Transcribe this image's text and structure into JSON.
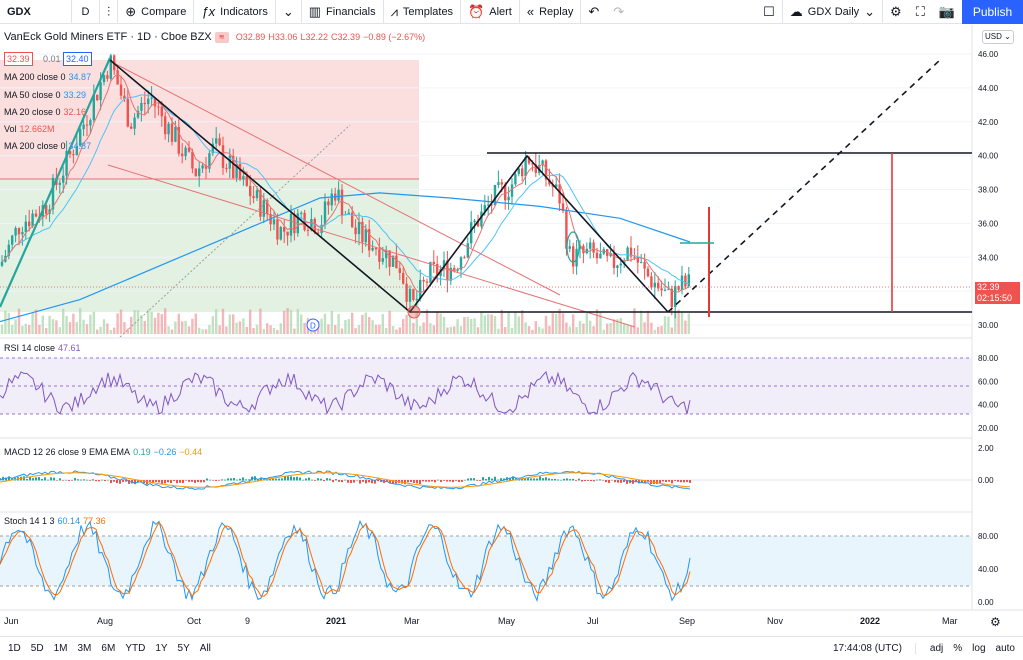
{
  "toolbar": {
    "symbol": "GDX",
    "interval": "D",
    "compare": "Compare",
    "indicators": "Indicators",
    "financials": "Financials",
    "templates": "Templates",
    "alert": "Alert",
    "replay": "Replay",
    "layout_name": "GDX Daily",
    "publish": "Publish"
  },
  "legend": {
    "title": "VanEck Gold Miners ETF · 1D · Cboe BZX",
    "ohlc": {
      "o": "O32.89",
      "h": "H33.06",
      "l": "L32.22",
      "c": "C32.39",
      "chg": "−0.89 (−2.67%)"
    },
    "bid": "32.39",
    "spread": "0.01",
    "ask": "32.40",
    "studies": [
      {
        "label": "MA 200 close 0",
        "value": "34.87",
        "color": "#2196f3"
      },
      {
        "label": "MA 50 close 0",
        "value": "33.29",
        "color": "#2196f3"
      },
      {
        "label": "MA 20 close 0",
        "value": "32.16",
        "color": "#f44336"
      },
      {
        "label": "Vol",
        "value": "12.662M",
        "color": "#f44336"
      },
      {
        "label": "MA 200 close 0",
        "value": "34.87",
        "color": "#2196f3"
      }
    ]
  },
  "price_axis": {
    "currency": "USD",
    "ticks": [
      "46.00",
      "44.00",
      "42.00",
      "40.00",
      "38.00",
      "36.00",
      "34.00",
      "32.00",
      "30.00"
    ],
    "last_price": "32.39",
    "countdown": "02:15:50"
  },
  "rsi": {
    "label": "RSI 14 close",
    "value": "47.61",
    "ticks": [
      "80.00",
      "60.00",
      "40.00",
      "20.00"
    ]
  },
  "macd": {
    "label": "MACD 12 26 close 9 EMA EMA",
    "v1": "0.19",
    "v2": "−0.26",
    "v3": "−0.44",
    "ticks": [
      "2.00",
      "0.00"
    ]
  },
  "stoch": {
    "label": "Stoch 14 1 3",
    "v1": "60.14",
    "v2": "77.36",
    "ticks": [
      "80.00",
      "40.00",
      "0.00"
    ]
  },
  "time_axis": [
    "Jun",
    "Aug",
    "Oct",
    "9",
    "2021",
    "Mar",
    "May",
    "Jul",
    "Sep",
    "Nov",
    "2022",
    "Mar"
  ],
  "bottom": {
    "ranges": [
      "1D",
      "5D",
      "1M",
      "3M",
      "6M",
      "YTD",
      "1Y",
      "5Y",
      "All"
    ],
    "clock": "17:44:08 (UTC)",
    "adj": "adj",
    "pct": "%",
    "log": "log",
    "auto": "auto"
  },
  "colors": {
    "up": "#26a69a",
    "down": "#ef5350",
    "accent": "#2962ff",
    "rsi": "#7e57c2",
    "ma_blue": "#2196f3"
  }
}
